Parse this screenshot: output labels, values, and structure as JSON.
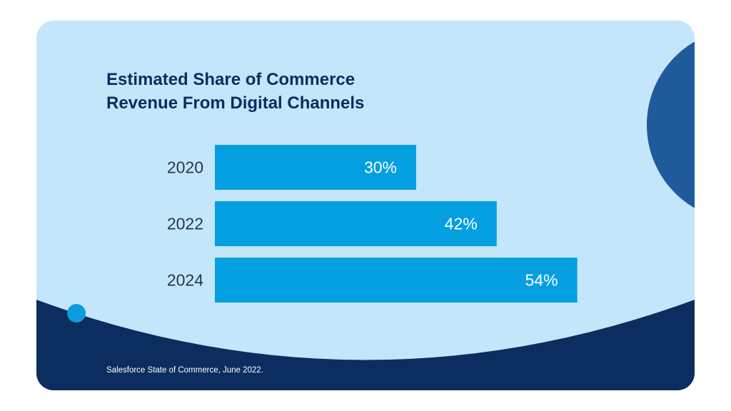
{
  "title": {
    "line1": "Estimated Share of Commerce",
    "line2": "Revenue From Digital Channels"
  },
  "source": "Salesforce State of Commerce, June 2022.",
  "colors": {
    "card_background": "#c3e6fb",
    "bar": "#049fe1",
    "title_text": "#0b2d5f",
    "footer_wave": "#0b2d5f",
    "semicircle": "#1f5a9b",
    "dot": "#0c9de0"
  },
  "chart_data": {
    "type": "bar",
    "orientation": "horizontal",
    "title": "Estimated Share of Commerce Revenue From Digital Channels",
    "categories": [
      "2020",
      "2022",
      "2024"
    ],
    "values": [
      30,
      42,
      54
    ],
    "value_labels": [
      "30%",
      "42%",
      "54%"
    ],
    "unit": "%",
    "xlim": [
      0,
      100
    ],
    "xlabel": "",
    "ylabel": "",
    "grid": false
  }
}
